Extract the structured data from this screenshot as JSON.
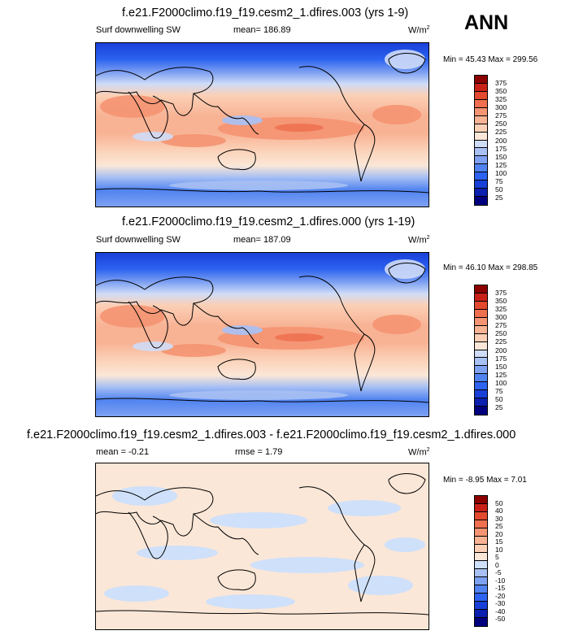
{
  "season": "ANN",
  "colors": {
    "abs": [
      "#00007f",
      "#0b1fb0",
      "#1840d8",
      "#2d63f0",
      "#5083f0",
      "#7ea1f2",
      "#a8c0f4",
      "#cfdcf7",
      "#fbe7d7",
      "#fbd0b6",
      "#f8b294",
      "#f59472",
      "#ef6f4f",
      "#e34a2f",
      "#c92118",
      "#8c0000"
    ],
    "diff": [
      "#00007f",
      "#0b1fb0",
      "#1840d8",
      "#2d63f0",
      "#5083f0",
      "#7ea1f2",
      "#a8c0f4",
      "#cfe0fa",
      "#fbe7d7",
      "#fbd0b6",
      "#f8b294",
      "#f59472",
      "#ef6f4f",
      "#e34a2f",
      "#c92118",
      "#8c0000"
    ]
  },
  "panels": [
    {
      "title": "f.e21.F2000climo.f19_f19.cesm2_1.dfires.003 (yrs 1-9)",
      "left_label": "Surf downwelling SW",
      "mean_label": "mean= 186.89",
      "units": "W/m",
      "units_sup": "2",
      "minmax": "Min =  45.43 Max = 299.56"
    },
    {
      "title": "f.e21.F2000climo.f19_f19.cesm2_1.dfires.000 (yrs 1-19)",
      "left_label": "Surf downwelling SW",
      "mean_label": "mean= 187.09",
      "units": "W/m",
      "units_sup": "2",
      "minmax": "Min =  46.10 Max = 298.85"
    },
    {
      "title": "f.e21.F2000climo.f19_f19.cesm2_1.dfires.003 - f.e21.F2000climo.f19_f19.cesm2_1.dfires.000",
      "left_label": "mean =  -0.21",
      "mean_label": "rmse =   1.79",
      "units": "W/m",
      "units_sup": "2",
      "minmax": "Min =  -8.95 Max =   7.01"
    }
  ],
  "chart_data": [
    {
      "type": "heatmap",
      "title": "f.e21.F2000climo.f19_f19.cesm2_1.dfires.003 (yrs 1-9)",
      "variable": "Surf downwelling SW",
      "units": "W/m2",
      "mean": 186.89,
      "min": 45.43,
      "max": 299.56,
      "colorbar_levels": [
        375,
        350,
        325,
        300,
        275,
        250,
        225,
        200,
        175,
        150,
        125,
        100,
        75,
        50,
        25
      ]
    },
    {
      "type": "heatmap",
      "title": "f.e21.F2000climo.f19_f19.cesm2_1.dfires.000 (yrs 1-19)",
      "variable": "Surf downwelling SW",
      "units": "W/m2",
      "mean": 187.09,
      "min": 46.1,
      "max": 298.85,
      "colorbar_levels": [
        375,
        350,
        325,
        300,
        275,
        250,
        225,
        200,
        175,
        150,
        125,
        100,
        75,
        50,
        25
      ]
    },
    {
      "type": "heatmap",
      "title": "f.e21.F2000climo.f19_f19.cesm2_1.dfires.003 - f.e21.F2000climo.f19_f19.cesm2_1.dfires.000",
      "units": "W/m2",
      "mean": -0.21,
      "rmse": 1.79,
      "min": -8.95,
      "max": 7.01,
      "colorbar_levels": [
        50,
        40,
        30,
        25,
        20,
        15,
        10,
        5,
        0,
        -5,
        -10,
        -15,
        -20,
        -30,
        -40,
        -50
      ]
    }
  ]
}
